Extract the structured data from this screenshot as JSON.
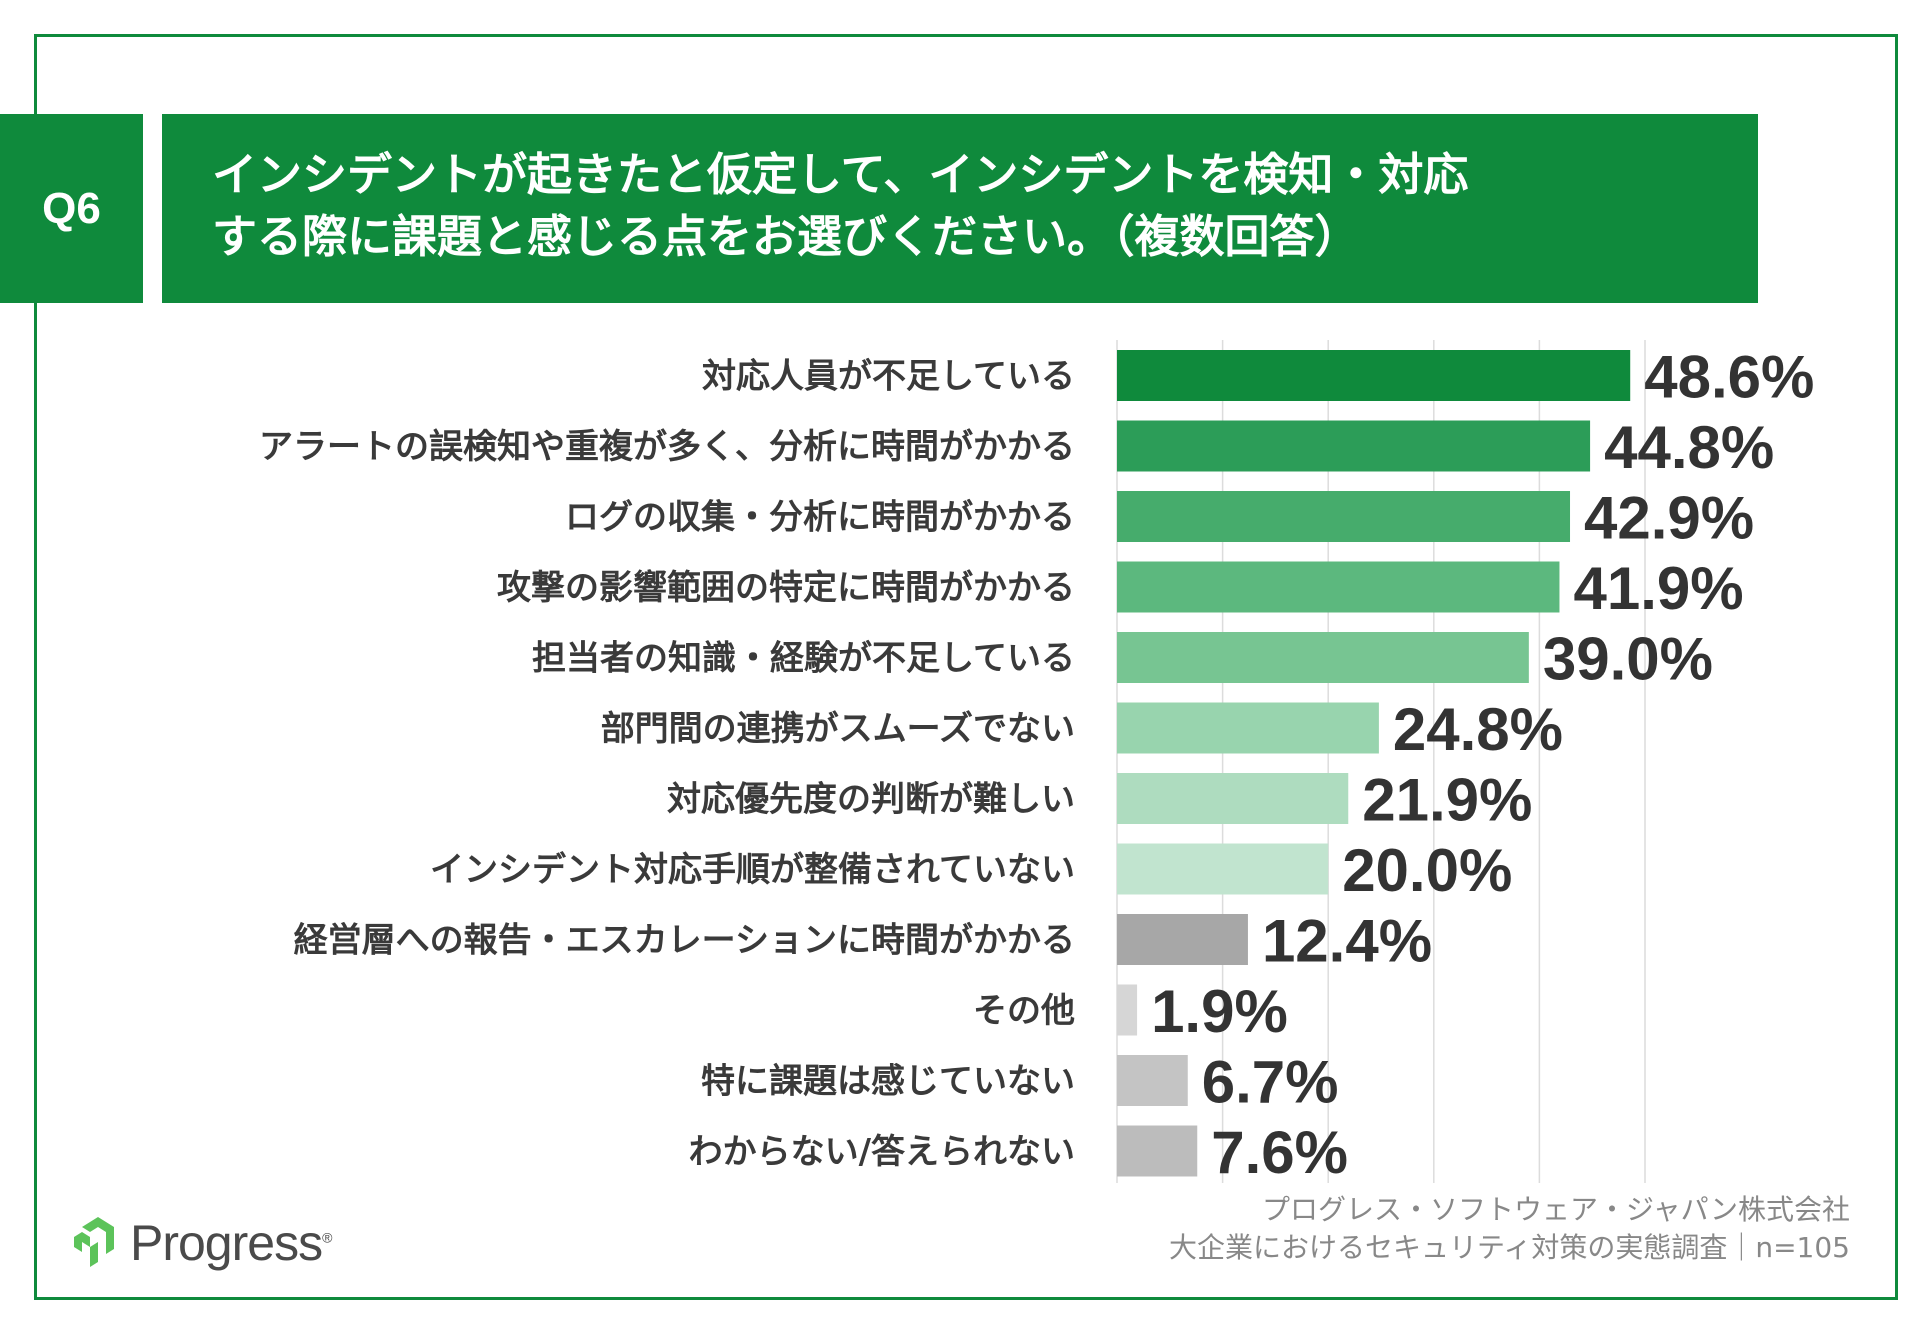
{
  "question": {
    "number": "Q6",
    "line1": "インシデントが起きたと仮定して、インシデントを検知・対応",
    "line2": "する際に課題と感じる点をお選びください。（複数回答）"
  },
  "chart_data": {
    "type": "bar",
    "orientation": "horizontal",
    "unit": "%",
    "categories": [
      "対応人員が不足している",
      "アラートの誤検知や重複が多く、分析に時間がかかる",
      "ログの収集・分析に時間がかかる",
      "攻撃の影響範囲の特定に時間がかかる",
      "担当者の知識・経験が不足している",
      "部門間の連携がスムーズでない",
      "対応優先度の判断が難しい",
      "インシデント対応手順が整備されていない",
      "経営層への報告・エスカレーションに時間がかかる",
      "その他",
      "特に課題は感じていない",
      "わからない/答えられない"
    ],
    "values": [
      48.6,
      44.8,
      42.9,
      41.9,
      39.0,
      24.8,
      21.9,
      20.0,
      12.4,
      1.9,
      6.7,
      7.6
    ],
    "value_labels": [
      "48.6%",
      "44.8%",
      "42.9%",
      "41.9%",
      "39.0%",
      "24.8%",
      "21.9%",
      "20.0%",
      "12.4%",
      "1.9%",
      "6.7%",
      "7.6%"
    ],
    "bar_colors": [
      "#0f8a3c",
      "#2c9d58",
      "#46ac6c",
      "#5cb87e",
      "#77c592",
      "#98d4ae",
      "#aedcbf",
      "#c1e4cf",
      "#a7a7a7",
      "#d6d6d6",
      "#c4c4c4",
      "#bcbcbc"
    ],
    "xlim": [
      0,
      50
    ],
    "grid": true,
    "grid_step": 10
  },
  "credit": {
    "line1": "プログレス・ソフトウェア・ジャパン株式会社",
    "line2": "大企業におけるセキュリティ対策の実態調査｜n=105"
  },
  "logo": {
    "text": "Progress",
    "mark": "®"
  }
}
